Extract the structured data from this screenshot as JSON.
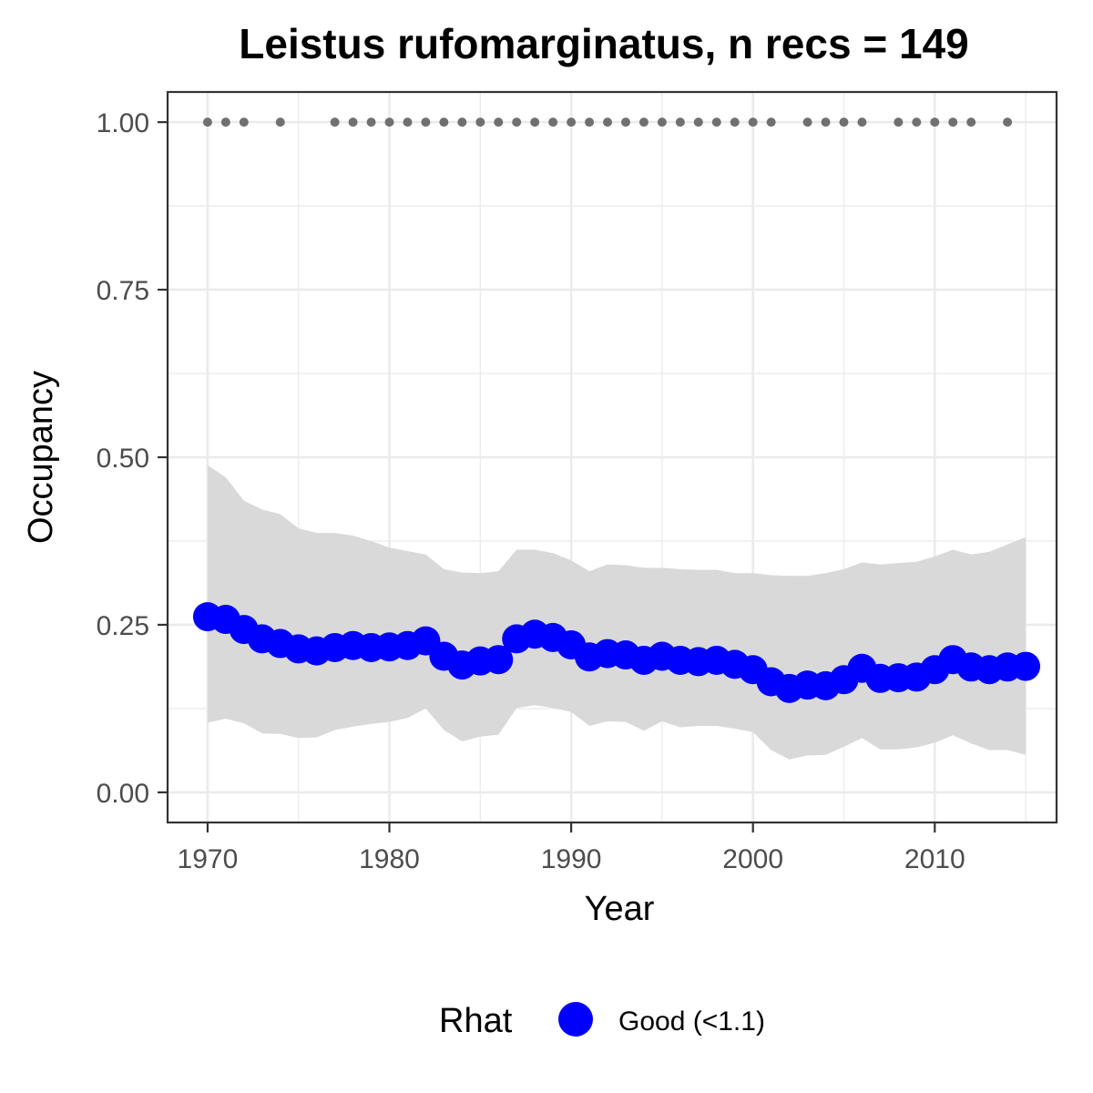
{
  "chart_data": {
    "type": "line",
    "title": "Leistus rufomarginatus, n recs = 149",
    "xlabel": "Year",
    "ylabel": "Occupancy",
    "xlim": [
      1967.8,
      2016.7
    ],
    "ylim": [
      -0.045,
      1.045
    ],
    "x_ticks": [
      1970,
      1980,
      1990,
      2000,
      2010
    ],
    "x_tick_labels": [
      "1970",
      "1980",
      "1990",
      "2000",
      "2010"
    ],
    "y_ticks": [
      0,
      0.25,
      0.5,
      0.75,
      1
    ],
    "y_tick_labels": [
      "0.00",
      "0.25",
      "0.50",
      "0.75",
      "1.00"
    ],
    "grid": true,
    "legend": {
      "title": "Rhat",
      "position": "bottom",
      "entries": [
        {
          "label": "Good (<1.1)",
          "color": "#0000ff"
        }
      ]
    },
    "colors": {
      "mean": "#0000ff",
      "ribbon": "#d9d9d9",
      "records": "#707070"
    },
    "series": [
      {
        "name": "Good (<1.1)",
        "x": [
          1970,
          1971,
          1972,
          1973,
          1974,
          1975,
          1976,
          1977,
          1978,
          1979,
          1980,
          1981,
          1982,
          1983,
          1984,
          1985,
          1986,
          1987,
          1988,
          1989,
          1990,
          1991,
          1992,
          1993,
          1994,
          1995,
          1996,
          1997,
          1998,
          1999,
          2000,
          2001,
          2002,
          2003,
          2004,
          2005,
          2006,
          2007,
          2008,
          2009,
          2010,
          2011,
          2012,
          2013,
          2014,
          2015
        ],
        "y": [
          0.262,
          0.258,
          0.243,
          0.229,
          0.222,
          0.214,
          0.211,
          0.216,
          0.219,
          0.216,
          0.217,
          0.219,
          0.226,
          0.203,
          0.19,
          0.196,
          0.198,
          0.229,
          0.236,
          0.231,
          0.22,
          0.202,
          0.207,
          0.205,
          0.197,
          0.203,
          0.197,
          0.195,
          0.197,
          0.191,
          0.183,
          0.165,
          0.155,
          0.16,
          0.159,
          0.168,
          0.185,
          0.17,
          0.171,
          0.172,
          0.183,
          0.198,
          0.187,
          0.183,
          0.187,
          0.188
        ],
        "lower": [
          0.104,
          0.11,
          0.103,
          0.088,
          0.087,
          0.081,
          0.082,
          0.093,
          0.098,
          0.102,
          0.105,
          0.111,
          0.125,
          0.093,
          0.076,
          0.083,
          0.086,
          0.126,
          0.13,
          0.126,
          0.12,
          0.099,
          0.106,
          0.105,
          0.092,
          0.106,
          0.097,
          0.099,
          0.099,
          0.095,
          0.09,
          0.063,
          0.049,
          0.055,
          0.056,
          0.068,
          0.081,
          0.064,
          0.064,
          0.067,
          0.074,
          0.085,
          0.073,
          0.063,
          0.063,
          0.056
        ],
        "upper": [
          0.488,
          0.47,
          0.435,
          0.422,
          0.415,
          0.394,
          0.387,
          0.387,
          0.383,
          0.375,
          0.365,
          0.36,
          0.355,
          0.333,
          0.328,
          0.327,
          0.33,
          0.362,
          0.362,
          0.357,
          0.346,
          0.33,
          0.34,
          0.339,
          0.335,
          0.335,
          0.333,
          0.332,
          0.332,
          0.327,
          0.327,
          0.324,
          0.323,
          0.323,
          0.327,
          0.333,
          0.343,
          0.34,
          0.342,
          0.344,
          0.352,
          0.362,
          0.355,
          0.359,
          0.37,
          0.381
        ]
      },
      {
        "name": "",
        "type": "scatter",
        "x": [
          1970,
          1971,
          1972,
          1974,
          1977,
          1978,
          1979,
          1980,
          1981,
          1982,
          1983,
          1984,
          1985,
          1986,
          1987,
          1988,
          1989,
          1990,
          1991,
          1992,
          1993,
          1994,
          1995,
          1996,
          1997,
          1998,
          1999,
          2000,
          2001,
          2003,
          2004,
          2005,
          2006,
          2008,
          2009,
          2010,
          2011,
          2012,
          2014
        ],
        "y": [
          1,
          1,
          1,
          1,
          1,
          1,
          1,
          1,
          1,
          1,
          1,
          1,
          1,
          1,
          1,
          1,
          1,
          1,
          1,
          1,
          1,
          1,
          1,
          1,
          1,
          1,
          1,
          1,
          1,
          1,
          1,
          1,
          1,
          1,
          1,
          1,
          1,
          1,
          1
        ]
      }
    ]
  }
}
